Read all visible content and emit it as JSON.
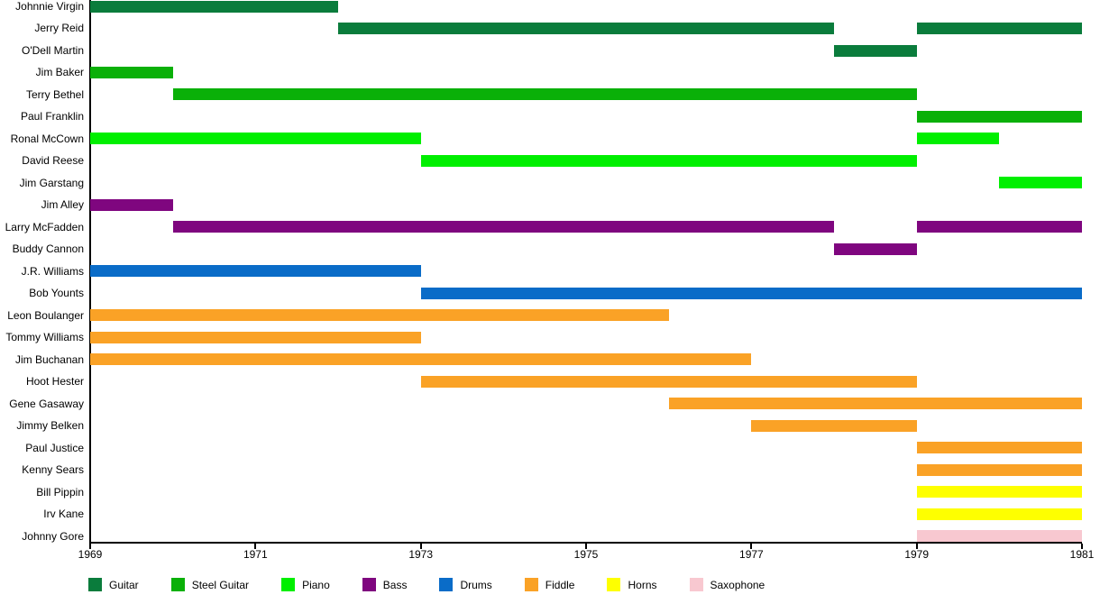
{
  "chart_data": {
    "type": "timeline",
    "title": "",
    "xlabel": "",
    "ylabel": "",
    "grid": false,
    "legend_position": "bottom",
    "x_axis": {
      "min": 1969,
      "max": 1981,
      "ticks": [
        1969,
        1971,
        1973,
        1975,
        1977,
        1979,
        1981
      ]
    },
    "colors": {
      "Guitar": "#0a7c3c",
      "Steel Guitar": "#0ab008",
      "Piano": "#00ef00",
      "Bass": "#7f067f",
      "Drums": "#0a6cc8",
      "Fiddle": "#faa226",
      "Horns": "#feff00",
      "Saxophone": "#f8c8d0"
    },
    "legend": [
      {
        "label": "Guitar",
        "color": "#0a7c3c"
      },
      {
        "label": "Steel Guitar",
        "color": "#0ab008"
      },
      {
        "label": "Piano",
        "color": "#00ef00"
      },
      {
        "label": "Bass",
        "color": "#7f067f"
      },
      {
        "label": "Drums",
        "color": "#0a6cc8"
      },
      {
        "label": "Fiddle",
        "color": "#faa226"
      },
      {
        "label": "Horns",
        "color": "#feff00"
      },
      {
        "label": "Saxophone",
        "color": "#f8c8d0"
      }
    ],
    "members": [
      {
        "name": "Johnnie Virgin",
        "instrument": "Guitar",
        "periods": [
          [
            1969,
            1972
          ]
        ]
      },
      {
        "name": "Jerry Reid",
        "instrument": "Guitar",
        "periods": [
          [
            1972,
            1978
          ],
          [
            1979,
            1981
          ]
        ]
      },
      {
        "name": "O'Dell Martin",
        "instrument": "Guitar",
        "periods": [
          [
            1978,
            1979
          ]
        ]
      },
      {
        "name": "Jim Baker",
        "instrument": "Steel Guitar",
        "periods": [
          [
            1969,
            1970
          ]
        ]
      },
      {
        "name": "Terry Bethel",
        "instrument": "Steel Guitar",
        "periods": [
          [
            1970,
            1979
          ]
        ]
      },
      {
        "name": "Paul Franklin",
        "instrument": "Steel Guitar",
        "periods": [
          [
            1979,
            1981
          ]
        ]
      },
      {
        "name": "Ronal McCown",
        "instrument": "Piano",
        "periods": [
          [
            1969,
            1973
          ],
          [
            1979,
            1980
          ]
        ]
      },
      {
        "name": "David Reese",
        "instrument": "Piano",
        "periods": [
          [
            1973,
            1979
          ]
        ]
      },
      {
        "name": "Jim Garstang",
        "instrument": "Piano",
        "periods": [
          [
            1980,
            1981
          ]
        ]
      },
      {
        "name": "Jim Alley",
        "instrument": "Bass",
        "periods": [
          [
            1969,
            1970
          ]
        ]
      },
      {
        "name": "Larry McFadden",
        "instrument": "Bass",
        "periods": [
          [
            1970,
            1978
          ],
          [
            1979,
            1981
          ]
        ]
      },
      {
        "name": "Buddy Cannon",
        "instrument": "Bass",
        "periods": [
          [
            1978,
            1979
          ]
        ]
      },
      {
        "name": "J.R. Williams",
        "instrument": "Drums",
        "periods": [
          [
            1969,
            1973
          ]
        ]
      },
      {
        "name": "Bob Younts",
        "instrument": "Drums",
        "periods": [
          [
            1973,
            1981
          ]
        ]
      },
      {
        "name": "Leon Boulanger",
        "instrument": "Fiddle",
        "periods": [
          [
            1969,
            1976
          ]
        ]
      },
      {
        "name": "Tommy Williams",
        "instrument": "Fiddle",
        "periods": [
          [
            1969,
            1973
          ]
        ]
      },
      {
        "name": "Jim Buchanan",
        "instrument": "Fiddle",
        "periods": [
          [
            1969,
            1977
          ]
        ]
      },
      {
        "name": "Hoot Hester",
        "instrument": "Fiddle",
        "periods": [
          [
            1973,
            1979
          ]
        ]
      },
      {
        "name": "Gene Gasaway",
        "instrument": "Fiddle",
        "periods": [
          [
            1976,
            1981
          ]
        ]
      },
      {
        "name": "Jimmy Belken",
        "instrument": "Fiddle",
        "periods": [
          [
            1977,
            1979
          ]
        ]
      },
      {
        "name": "Paul Justice",
        "instrument": "Fiddle",
        "periods": [
          [
            1979,
            1981
          ]
        ]
      },
      {
        "name": "Kenny Sears",
        "instrument": "Fiddle",
        "periods": [
          [
            1979,
            1981
          ]
        ]
      },
      {
        "name": "Bill Pippin",
        "instrument": "Horns",
        "periods": [
          [
            1979,
            1981
          ]
        ]
      },
      {
        "name": "Irv Kane",
        "instrument": "Horns",
        "periods": [
          [
            1979,
            1981
          ]
        ]
      },
      {
        "name": "Johnny Gore",
        "instrument": "Saxophone",
        "periods": [
          [
            1979,
            1981
          ]
        ]
      }
    ]
  }
}
